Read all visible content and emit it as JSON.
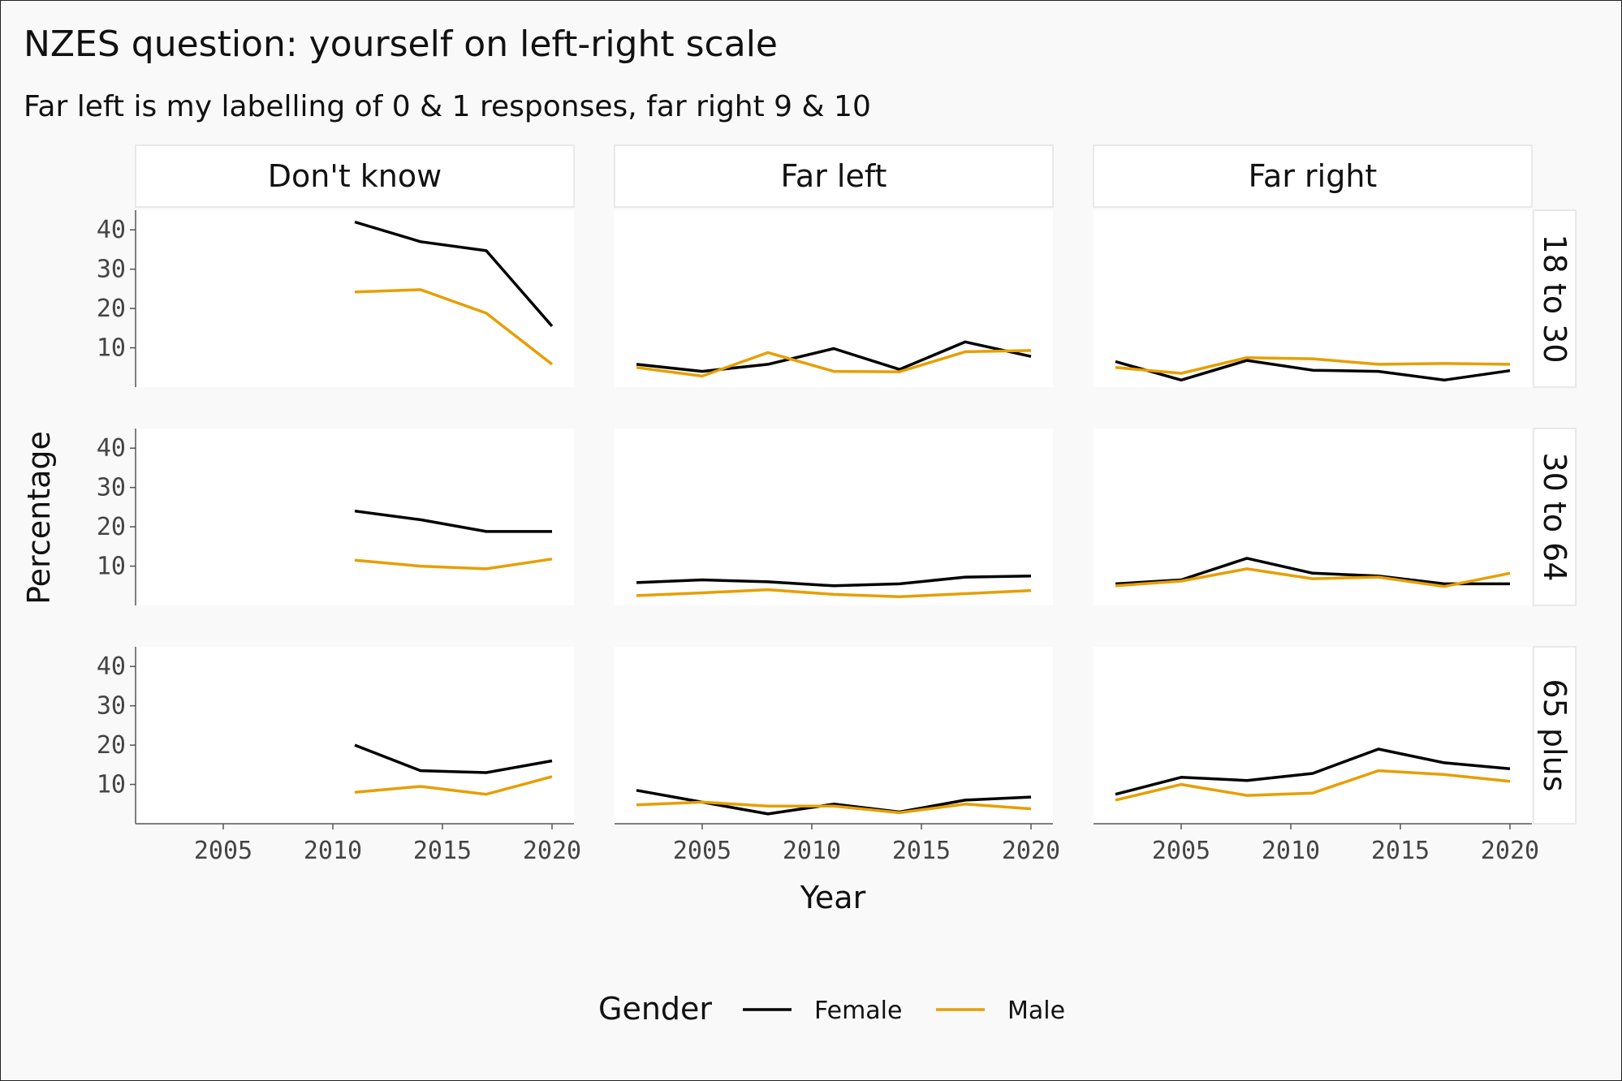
{
  "title": "NZES question: yourself on left-right scale",
  "subtitle": "Far left is my labelling of 0 & 1 responses, far right 9 & 10",
  "chart_data": {
    "type": "line",
    "facet_columns": [
      "Don't know",
      "Far left",
      "Far right"
    ],
    "facet_rows": [
      "18 to 30",
      "30 to 64",
      "65 plus"
    ],
    "xlabel": "Year",
    "ylabel": "Percentage",
    "xlim": [
      2001,
      2021
    ],
    "ylim": [
      0,
      45
    ],
    "x_ticks": [
      2005,
      2010,
      2015,
      2020
    ],
    "y_ticks": [
      10,
      20,
      30,
      40
    ],
    "legend": {
      "title": "Gender",
      "position": "bottom"
    },
    "series_styles": [
      {
        "name": "Female",
        "color": "#000000"
      },
      {
        "name": "Male",
        "color": "#e69f00"
      }
    ],
    "panels": [
      {
        "column": "Don't know",
        "row": "18 to 30",
        "series": [
          {
            "name": "Female",
            "x": [
              2011,
              2014,
              2017,
              2020
            ],
            "y": [
              42,
              37,
              34.7,
              15.5
            ]
          },
          {
            "name": "Male",
            "x": [
              2011,
              2014,
              2017,
              2020
            ],
            "y": [
              24.2,
              24.8,
              18.8,
              5.8
            ]
          }
        ]
      },
      {
        "column": "Far left",
        "row": "18 to 30",
        "series": [
          {
            "name": "Female",
            "x": [
              2002,
              2005,
              2008,
              2011,
              2014,
              2017,
              2020
            ],
            "y": [
              5.8,
              4,
              5.8,
              9.8,
              4.5,
              11.5,
              7.8
            ]
          },
          {
            "name": "Male",
            "x": [
              2002,
              2005,
              2008,
              2011,
              2014,
              2017,
              2020
            ],
            "y": [
              5,
              2.8,
              8.8,
              4,
              3.9,
              9,
              9.3
            ]
          }
        ]
      },
      {
        "column": "Far right",
        "row": "18 to 30",
        "series": [
          {
            "name": "Female",
            "x": [
              2002,
              2005,
              2008,
              2011,
              2014,
              2017,
              2020
            ],
            "y": [
              6.5,
              1.8,
              6.8,
              4.3,
              4,
              1.8,
              4.2
            ]
          },
          {
            "name": "Male",
            "x": [
              2002,
              2005,
              2008,
              2011,
              2014,
              2017,
              2020
            ],
            "y": [
              5,
              3.5,
              7.5,
              7.2,
              5.8,
              6,
              5.8
            ]
          }
        ]
      },
      {
        "column": "Don't know",
        "row": "30 to 64",
        "series": [
          {
            "name": "Female",
            "x": [
              2011,
              2014,
              2017,
              2020
            ],
            "y": [
              24,
              21.8,
              18.8,
              18.8
            ]
          },
          {
            "name": "Male",
            "x": [
              2011,
              2014,
              2017,
              2020
            ],
            "y": [
              11.5,
              10,
              9.3,
              11.8
            ]
          }
        ]
      },
      {
        "column": "Far left",
        "row": "30 to 64",
        "series": [
          {
            "name": "Female",
            "x": [
              2002,
              2005,
              2008,
              2011,
              2014,
              2017,
              2020
            ],
            "y": [
              5.8,
              6.5,
              6,
              5,
              5.5,
              7.2,
              7.5
            ]
          },
          {
            "name": "Male",
            "x": [
              2002,
              2005,
              2008,
              2011,
              2014,
              2017,
              2020
            ],
            "y": [
              2.5,
              3.2,
              4,
              2.8,
              2.2,
              3,
              3.8
            ]
          }
        ]
      },
      {
        "column": "Far right",
        "row": "30 to 64",
        "series": [
          {
            "name": "Female",
            "x": [
              2002,
              2005,
              2008,
              2011,
              2014,
              2017,
              2020
            ],
            "y": [
              5.5,
              6.5,
              12,
              8.2,
              7.5,
              5.5,
              5.5
            ]
          },
          {
            "name": "Male",
            "x": [
              2002,
              2005,
              2008,
              2011,
              2014,
              2017,
              2020
            ],
            "y": [
              5,
              6.2,
              9.3,
              6.8,
              7.2,
              4.8,
              8.2
            ]
          }
        ]
      },
      {
        "column": "Don't know",
        "row": "65 plus",
        "series": [
          {
            "name": "Female",
            "x": [
              2011,
              2014,
              2017,
              2020
            ],
            "y": [
              20,
              13.5,
              13,
              16
            ]
          },
          {
            "name": "Male",
            "x": [
              2011,
              2014,
              2017,
              2020
            ],
            "y": [
              8,
              9.5,
              7.5,
              12
            ]
          }
        ]
      },
      {
        "column": "Far left",
        "row": "65 plus",
        "series": [
          {
            "name": "Female",
            "x": [
              2002,
              2005,
              2008,
              2011,
              2014,
              2017,
              2020
            ],
            "y": [
              8.5,
              5.5,
              2.5,
              5,
              3,
              6,
              6.8
            ]
          },
          {
            "name": "Male",
            "x": [
              2002,
              2005,
              2008,
              2011,
              2014,
              2017,
              2020
            ],
            "y": [
              4.8,
              5.5,
              4.5,
              4.5,
              2.8,
              5,
              3.8
            ]
          }
        ]
      },
      {
        "column": "Far right",
        "row": "65 plus",
        "series": [
          {
            "name": "Female",
            "x": [
              2002,
              2005,
              2008,
              2011,
              2014,
              2017,
              2020
            ],
            "y": [
              7.5,
              11.8,
              11,
              12.8,
              19,
              15.5,
              14
            ]
          },
          {
            "name": "Male",
            "x": [
              2002,
              2005,
              2008,
              2011,
              2014,
              2017,
              2020
            ],
            "y": [
              6,
              10,
              7.2,
              7.8,
              13.5,
              12.5,
              10.8
            ]
          }
        ]
      }
    ]
  }
}
